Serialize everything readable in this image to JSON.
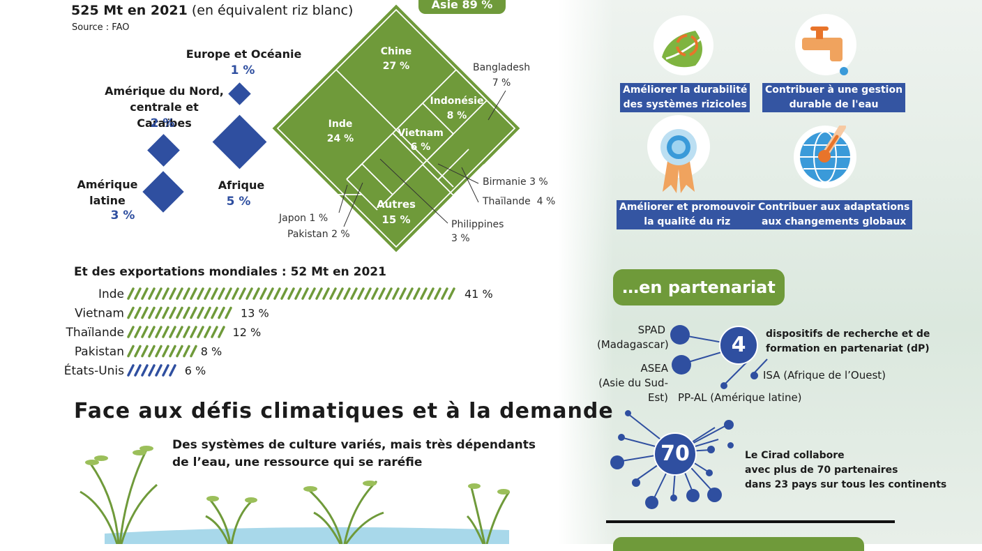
{
  "production": {
    "title_bold": "525 Mt en 2021",
    "title_rest": " (en équivalent riz blanc)",
    "source": "Source : FAO",
    "asia_label": "Asie 89 %"
  },
  "regions": [
    {
      "label": "Europe et Océanie",
      "pct": "1 %"
    },
    {
      "label": "Amérique du Nord, centrale et Caraïbes",
      "pct": "2 %"
    },
    {
      "label": "Amérique latine",
      "pct": "3 %"
    },
    {
      "label": "Afrique",
      "pct": "5 %"
    }
  ],
  "asia_inner": [
    {
      "name": "Chine",
      "pct": "27 %"
    },
    {
      "name": "Inde",
      "pct": "24 %"
    },
    {
      "name": "Indonésie",
      "pct": "8 %"
    },
    {
      "name": "Vietnam",
      "pct": "6 %"
    },
    {
      "name": "Autres",
      "pct": "15 %"
    }
  ],
  "asia_outer": [
    {
      "name": "Bangladesh",
      "pct": "7 %"
    },
    {
      "name": "Birmanie",
      "pct": "3 %"
    },
    {
      "name": "Thaïlande",
      "pct": "4 %"
    },
    {
      "name": "Philippines",
      "pct": "3 %"
    },
    {
      "name": "Japon",
      "pct": "1 %"
    },
    {
      "name": "Pakistan",
      "pct": "2 %"
    }
  ],
  "exports": {
    "title": "Et des exportations mondiales : 52 Mt en 2021"
  },
  "chart_data": {
    "type": "bar",
    "title": "Et des exportations mondiales : 52 Mt en 2021",
    "categories": [
      "Inde",
      "Vietnam",
      "Thaïlande",
      "Pakistan",
      "États-Unis"
    ],
    "values": [
      41,
      13,
      12,
      8,
      6
    ],
    "value_labels": [
      "41 %",
      "13 %",
      "12 %",
      "8 %",
      "6 %"
    ],
    "colors": [
      "#6f9a3a",
      "#6f9a3a",
      "#6f9a3a",
      "#6f9a3a",
      "#2f4fa0"
    ],
    "xlabel": "",
    "ylabel": ""
  },
  "climate": {
    "heading": "Face aux défis climatiques et à la demande",
    "subtitle_line1": "Des systèmes de culture variés, mais très dépendants",
    "subtitle_line2": "de l’eau, une ressource qui se raréfie"
  },
  "goals": [
    {
      "line1": "Améliorer la durabilité",
      "line2": "des systèmes rizicoles",
      "icon": "leaf-recycle-icon"
    },
    {
      "line1": "Contribuer à une gestion",
      "line2": "durable de l'eau",
      "icon": "water-tap-icon"
    },
    {
      "line1": "Améliorer et promouvoir",
      "line2": "la qualité du riz",
      "icon": "medal-icon"
    },
    {
      "line1": "Contribuer aux adaptations",
      "line2": "aux changements globaux",
      "icon": "globe-thermometer-icon"
    }
  ],
  "partnership": {
    "pill": "…en partenariat",
    "count_dp": "4",
    "dp_line1": "dispositifs de recherche et de",
    "dp_line2": "formation en partenariat (dP)",
    "spad_line1": "SPAD",
    "spad_line2": "(Madagascar)",
    "asea_line1": "ASEA",
    "asea_line2": "(Asie du Sud-Est)",
    "isa": "ISA (Afrique de l’Ouest)",
    "ppal": "PP-AL (Amérique latine)",
    "count_partners": "70",
    "p_line1": "Le Cirad collabore",
    "p_line2": "avec plus de 70 partenaires",
    "p_line3": "dans 23 pays sur tous les continents"
  },
  "colors": {
    "green": "#6f9a3a",
    "blue": "#2f4fa0",
    "label_blue": "#3455a2"
  }
}
